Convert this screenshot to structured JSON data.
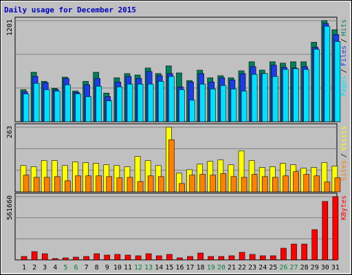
{
  "title": "Daily usage for December 2015",
  "legend_separator": "/",
  "chart_data": [
    {
      "type": "bar",
      "series": [
        {
          "name": "Hits",
          "color": "#00805c",
          "values": [
            381,
            588,
            480,
            398,
            530,
            364,
            480,
            588,
            340,
            522,
            572,
            555,
            638,
            572,
            663,
            580,
            489,
            613,
            522,
            547,
            522,
            605,
            712,
            613,
            712,
            696,
            712,
            712,
            944,
            1201,
            1093
          ]
        },
        {
          "name": "Files",
          "color": "#1c3ce8",
          "values": [
            356,
            538,
            464,
            381,
            514,
            348,
            439,
            514,
            298,
            472,
            538,
            514,
            596,
            547,
            572,
            414,
            472,
            572,
            472,
            522,
            497,
            572,
            654,
            572,
            671,
            646,
            638,
            654,
            886,
            1168,
            1035
          ]
        },
        {
          "name": "Pages",
          "color": "#00e0ff",
          "values": [
            331,
            456,
            381,
            364,
            439,
            331,
            298,
            422,
            248,
            414,
            447,
            447,
            447,
            480,
            538,
            381,
            257,
            447,
            389,
            431,
            389,
            364,
            563,
            572,
            538,
            621,
            630,
            621,
            861,
            1135,
            953
          ]
        }
      ],
      "ylim": [
        0,
        1201
      ],
      "yticks": [
        1201
      ],
      "grid": true
    },
    {
      "type": "bar",
      "series": [
        {
          "name": "Visits",
          "color": "#ffff00",
          "values": [
            107,
            102,
            127,
            127,
            107,
            122,
            119,
            116,
            110,
            107,
            102,
            144,
            127,
            107,
            263,
            76,
            90,
            113,
            124,
            130,
            110,
            167,
            127,
            99,
            102,
            116,
            110,
            96,
            99,
            119,
            105
          ]
        },
        {
          "name": "Sites",
          "color": "#ff8000",
          "values": [
            68,
            59,
            59,
            62,
            45,
            65,
            65,
            65,
            62,
            57,
            59,
            42,
            65,
            62,
            212,
            34,
            68,
            71,
            68,
            74,
            62,
            59,
            71,
            62,
            59,
            65,
            82,
            71,
            65,
            40,
            57
          ]
        }
      ],
      "ylim": [
        0,
        263
      ],
      "yticks": [
        263
      ],
      "grid": true
    },
    {
      "type": "bar",
      "categories": [
        "1",
        "2",
        "3",
        "4",
        "5",
        "6",
        "7",
        "8",
        "9",
        "10",
        "11",
        "12",
        "13",
        "14",
        "15",
        "16",
        "17",
        "18",
        "19",
        "20",
        "21",
        "22",
        "23",
        "24",
        "25",
        "26",
        "27",
        "28",
        "29",
        "30",
        "31"
      ],
      "label_colors": [
        "#000",
        "#000",
        "#000",
        "#000",
        "#008040",
        "#008040",
        "#000",
        "#000",
        "#000",
        "#000",
        "#000",
        "#008040",
        "#008040",
        "#000",
        "#000",
        "#000",
        "#000",
        "#000",
        "#008040",
        "#008040",
        "#000",
        "#000",
        "#000",
        "#000",
        "#000",
        "#008040",
        "#008040",
        "#000",
        "#000",
        "#000",
        "#000"
      ],
      "series": [
        {
          "name": "KBytes",
          "color": "#ff0000",
          "values": [
            30525,
            73260,
            54945,
            12210,
            18315,
            24420,
            30525,
            54945,
            42735,
            48840,
            42735,
            36630,
            54945,
            36630,
            48840,
            18315,
            30525,
            61050,
            30525,
            30525,
            36630,
            67155,
            48840,
            36630,
            36630,
            103785,
            140415,
            140415,
            268620,
            518925,
            561660
          ]
        }
      ],
      "ylim": [
        0,
        561660
      ],
      "yticks": [
        561660
      ],
      "grid": true
    }
  ]
}
